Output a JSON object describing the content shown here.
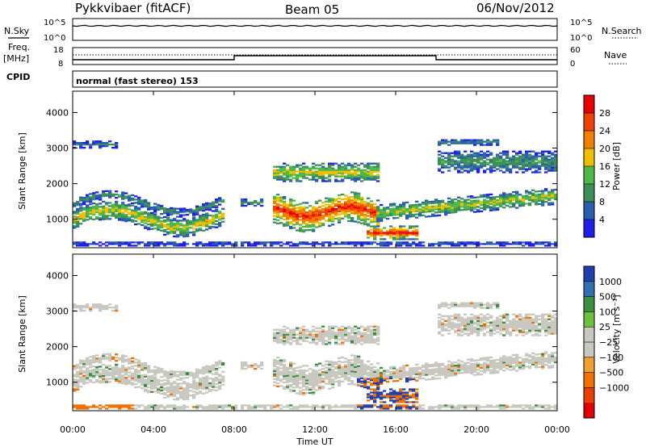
{
  "header": {
    "station": "Pykkvibaer (fitACF)",
    "beam": "Beam 05",
    "date": "06/Nov/2012"
  },
  "top_panel": {
    "left_label": "N.Sky",
    "right_label": "N.Search",
    "left_ticks": [
      "10^5",
      "10^0"
    ],
    "right_ticks": [
      "10^5",
      "10^0"
    ]
  },
  "freq_panel": {
    "left_label_line1": "Freq.",
    "left_label_line2": "[MHz]",
    "right_label": "Nave",
    "left_ticks": [
      "18",
      "8"
    ],
    "right_ticks": [
      "60",
      "0"
    ]
  },
  "cpid": {
    "label": "CPID",
    "mode": "normal (fast stereo) 153"
  },
  "colors": {
    "power": [
      "#1f1fe6",
      "#2a5fb0",
      "#3f8f5a",
      "#4fb84a",
      "#f0c000",
      "#f08000",
      "#f04000",
      "#e60000"
    ],
    "velocity": [
      "#2040b0",
      "#3070b0",
      "#3a9040",
      "#70c040",
      "#c8c8c0",
      "#c8c8c0",
      "#f0a030",
      "#f07000",
      "#e84000",
      "#e00000"
    ]
  },
  "chart_data": [
    {
      "type": "heatmap",
      "name": "power",
      "ylabel": "Slant Range [km]",
      "yticks": [
        1000,
        2000,
        3000,
        4000
      ],
      "ylim": [
        200,
        4600
      ],
      "xlim_hours": [
        0,
        24
      ],
      "colorbar_label": "Power [dB]",
      "colorbar_ticks": [
        4,
        8,
        12,
        16,
        20,
        24,
        28
      ],
      "clim": [
        0,
        32
      ]
    },
    {
      "type": "heatmap",
      "name": "velocity",
      "ylabel": "Slant Range [km]",
      "yticks": [
        1000,
        2000,
        3000,
        4000
      ],
      "ylim": [
        200,
        4600
      ],
      "xlim_hours": [
        0,
        24
      ],
      "colorbar_label": "Velocity [m s⁻¹]",
      "colorbar_ticks": [
        "1000",
        "500",
        "100",
        "25",
        "−25",
        "−100",
        "−500",
        "−1000"
      ]
    }
  ],
  "time_axis": {
    "label": "Time UT",
    "ticks": [
      "00:00",
      "04:00",
      "08:00",
      "12:00",
      "16:00",
      "20:00",
      "00:00"
    ]
  }
}
